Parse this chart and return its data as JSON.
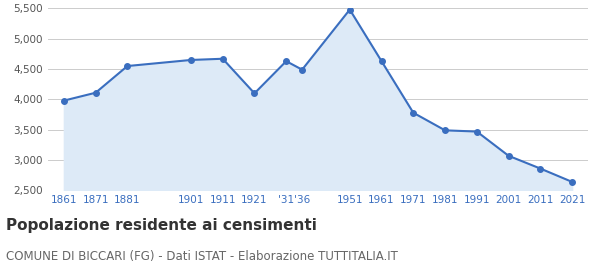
{
  "years": [
    1861,
    1871,
    1881,
    1901,
    1911,
    1921,
    1931,
    1936,
    1951,
    1961,
    1971,
    1981,
    1991,
    2001,
    2011,
    2021
  ],
  "x_labels": [
    "1861",
    "1871",
    "1881",
    "",
    "1901",
    "1911",
    "1921",
    "'31'36",
    "",
    "1951",
    "1961",
    "1971",
    "1981",
    "1991",
    "2001",
    "2011",
    "2021"
  ],
  "population": [
    3980,
    4110,
    4550,
    4650,
    4670,
    4100,
    4630,
    4490,
    5480,
    4630,
    3780,
    3490,
    3470,
    3070,
    2860,
    2640
  ],
  "tick_labels": [
    "1861",
    "1871",
    "1881",
    "1901",
    "1911",
    "1921",
    "'31'36",
    "1951",
    "1961",
    "1971",
    "1981",
    "1991",
    "2001",
    "2011",
    "2021"
  ],
  "tick_positions": [
    1861,
    1871,
    1881,
    1901,
    1911,
    1921,
    1933.5,
    1951,
    1961,
    1971,
    1981,
    1991,
    2001,
    2011,
    2021
  ],
  "line_color": "#3a6ebf",
  "fill_color": "#ddeaf7",
  "marker_color": "#3a6ebf",
  "grid_color": "#cccccc",
  "background_color": "#ffffff",
  "title": "Popolazione residente ai censimenti",
  "subtitle": "COMUNE DI BICCARI (FG) - Dati ISTAT - Elaborazione TUTTITALIA.IT",
  "ylim": [
    2500,
    5500
  ],
  "yticks": [
    2500,
    3000,
    3500,
    4000,
    4500,
    5000,
    5500
  ],
  "ytick_labels": [
    "2,500",
    "3,000",
    "3,500",
    "4,000",
    "4,500",
    "5,000",
    "5,500"
  ],
  "title_fontsize": 11,
  "subtitle_fontsize": 8.5,
  "tick_fontsize": 7.5
}
